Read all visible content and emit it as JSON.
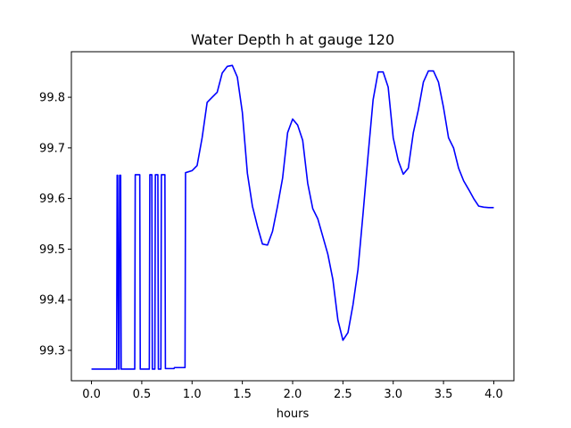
{
  "chart_data": {
    "type": "line",
    "title": "Water Depth h at gauge 120",
    "xlabel": "hours",
    "ylabel": "",
    "xlim": [
      -0.2,
      4.2
    ],
    "ylim": [
      99.24,
      99.89
    ],
    "xticks": [
      0.0,
      0.5,
      1.0,
      1.5,
      2.0,
      2.5,
      3.0,
      3.5,
      4.0
    ],
    "xtick_labels": [
      "0.0",
      "0.5",
      "1.0",
      "1.5",
      "2.0",
      "2.5",
      "3.0",
      "3.5",
      "4.0"
    ],
    "yticks": [
      99.3,
      99.4,
      99.5,
      99.6,
      99.7,
      99.8
    ],
    "ytick_labels": [
      "99.3",
      "99.4",
      "99.5",
      "99.6",
      "99.7",
      "99.8"
    ],
    "grid": false,
    "series": [
      {
        "color": "#0000ff",
        "x": [
          0.0,
          0.24,
          0.25,
          0.255,
          0.26,
          0.27,
          0.275,
          0.28,
          0.29,
          0.295,
          0.3,
          0.31,
          0.43,
          0.435,
          0.48,
          0.485,
          0.575,
          0.58,
          0.6,
          0.605,
          0.63,
          0.635,
          0.66,
          0.665,
          0.69,
          0.695,
          0.73,
          0.735,
          0.82,
          0.825,
          0.93,
          0.935,
          1.0,
          1.05,
          1.1,
          1.15,
          1.2,
          1.25,
          1.3,
          1.35,
          1.4,
          1.45,
          1.5,
          1.55,
          1.6,
          1.65,
          1.7,
          1.75,
          1.8,
          1.85,
          1.9,
          1.95,
          2.0,
          2.05,
          2.1,
          2.15,
          2.2,
          2.25,
          2.3,
          2.35,
          2.4,
          2.45,
          2.5,
          2.55,
          2.6,
          2.65,
          2.7,
          2.75,
          2.8,
          2.85,
          2.9,
          2.95,
          3.0,
          3.05,
          3.1,
          3.15,
          3.2,
          3.25,
          3.3,
          3.35,
          3.4,
          3.45,
          3.5,
          3.55,
          3.6,
          3.65,
          3.7,
          3.75,
          3.8,
          3.85,
          3.9,
          3.95,
          4.0
        ],
        "y": [
          99.263,
          99.263,
          99.263,
          99.646,
          99.646,
          99.263,
          99.263,
          99.646,
          99.646,
          99.263,
          99.263,
          99.263,
          99.263,
          99.647,
          99.647,
          99.263,
          99.263,
          99.647,
          99.647,
          99.263,
          99.263,
          99.647,
          99.647,
          99.263,
          99.263,
          99.647,
          99.647,
          99.264,
          99.264,
          99.266,
          99.266,
          99.651,
          99.655,
          99.665,
          99.72,
          99.79,
          99.8,
          99.81,
          99.848,
          99.861,
          99.863,
          99.84,
          99.77,
          99.65,
          99.585,
          99.545,
          99.51,
          99.508,
          99.535,
          99.585,
          99.64,
          99.73,
          99.757,
          99.745,
          99.715,
          99.63,
          99.58,
          99.56,
          99.525,
          99.49,
          99.44,
          99.36,
          99.32,
          99.335,
          99.39,
          99.46,
          99.57,
          99.685,
          99.795,
          99.85,
          99.85,
          99.82,
          99.72,
          99.675,
          99.648,
          99.66,
          99.73,
          99.775,
          99.83,
          99.852,
          99.852,
          99.83,
          99.78,
          99.72,
          99.7,
          99.66,
          99.635,
          99.618,
          99.6,
          99.585,
          99.583,
          99.582,
          99.582
        ]
      }
    ]
  }
}
